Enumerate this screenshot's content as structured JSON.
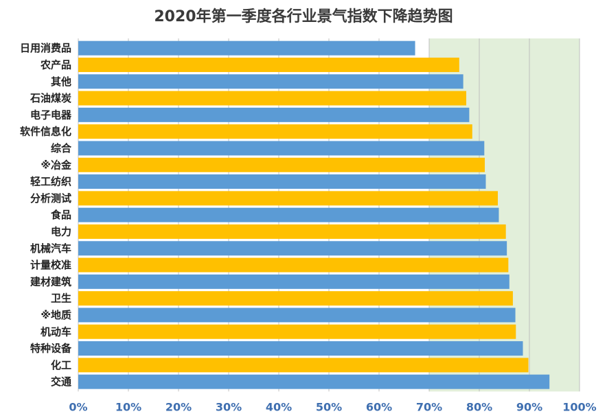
{
  "chart_data": {
    "type": "bar",
    "orientation": "horizontal",
    "title": "2020年第一季度各行业景气指数下降趋势图",
    "categories": [
      "日用消费品",
      "农产品",
      "其他",
      "石油煤炭",
      "电子电器",
      "软件信息化",
      "综合",
      "※冶金",
      "轻工纺织",
      "分析测试",
      "食品",
      "电力",
      "机械汽车",
      "计量校准",
      "建材建筑",
      "卫生",
      "※地质",
      "机动车",
      "特种设备",
      "化工",
      "交通"
    ],
    "values": [
      0.672,
      0.76,
      0.768,
      0.774,
      0.78,
      0.786,
      0.81,
      0.811,
      0.813,
      0.837,
      0.839,
      0.853,
      0.855,
      0.858,
      0.86,
      0.867,
      0.872,
      0.873,
      0.887,
      0.898,
      0.94
    ],
    "xlim": [
      0,
      1
    ],
    "xticks": [
      "0%",
      "10%",
      "20%",
      "30%",
      "40%",
      "50%",
      "60%",
      "70%",
      "80%",
      "90%",
      "100%"
    ],
    "xlabel": "",
    "ylabel": "",
    "grid": true,
    "colors": {
      "bar_a": "#5b9bd5",
      "bar_b": "#ffc000",
      "background_band": "#e2efda",
      "gridline": "#bfbfbf",
      "tick_label": "#3f6fb0"
    }
  }
}
